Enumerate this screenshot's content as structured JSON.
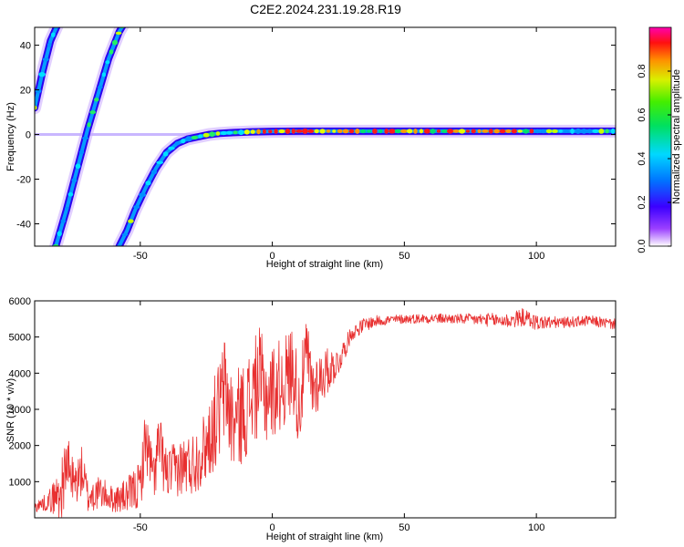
{
  "title": "C2E2.2024.231.19.28.R19",
  "chart_data": [
    {
      "type": "heatmap",
      "xlabel": "Height of straight line (km)",
      "ylabel": "Frequency (Hz)",
      "xlim": [
        -90,
        130
      ],
      "ylim": [
        -50,
        48
      ],
      "xticks": [
        -50,
        0,
        50,
        100
      ],
      "yticks": [
        -40,
        -20,
        0,
        20,
        40
      ],
      "colorbar": {
        "label": "Normalized spectral amplitude",
        "range": [
          0,
          1
        ],
        "ticks": [
          0.0,
          0.2,
          0.4,
          0.6,
          0.8
        ],
        "tick_labels": [
          "0.0",
          "0.2",
          "0.4",
          "0.6",
          "0.8"
        ]
      },
      "traces": [
        {
          "x": [
            -90,
            -87,
            -84,
            -81
          ],
          "y": [
            12,
            28,
            42,
            50
          ]
        },
        {
          "x": [
            -82,
            -78,
            -74,
            -70,
            -66,
            -62,
            -58,
            -55
          ],
          "y": [
            -50,
            -34,
            -16,
            2,
            18,
            34,
            46,
            52
          ]
        },
        {
          "x": [
            -58,
            -55,
            -52,
            -48,
            -44,
            -40,
            -36,
            -32,
            -28,
            -24,
            -20,
            -16,
            -12,
            -8,
            -4,
            0,
            10,
            20,
            40,
            60,
            80,
            100,
            130
          ],
          "y": [
            -50,
            -43,
            -34,
            -24,
            -15,
            -8,
            -4,
            -2,
            -1,
            0,
            0.5,
            0.8,
            1,
            1.2,
            1.3,
            1.4,
            1.5,
            1.5,
            1.5,
            1.5,
            1.5,
            1.5,
            1.5
          ]
        }
      ]
    },
    {
      "type": "line",
      "xlabel": "Height of straight line (km)",
      "ylabel": "SNR (10 * v/v)",
      "xlim": [
        -90,
        130
      ],
      "ylim": [
        0,
        6000
      ],
      "xticks": [
        -50,
        0,
        50,
        100
      ],
      "yticks": [
        1000,
        2000,
        3000,
        4000,
        5000,
        6000
      ],
      "color": "#e83030",
      "x": [
        -90,
        -85,
        -80,
        -78,
        -75,
        -72,
        -70,
        -65,
        -60,
        -55,
        -50,
        -48,
        -45,
        -43,
        -40,
        -35,
        -30,
        -25,
        -20,
        -18,
        -15,
        -10,
        -5,
        -3,
        0,
        5,
        8,
        10,
        13,
        15,
        20,
        25,
        30,
        35,
        40,
        50,
        60,
        70,
        80,
        90,
        95,
        100,
        110,
        120,
        130
      ],
      "y": [
        300,
        450,
        700,
        1500,
        900,
        1300,
        600,
        700,
        500,
        600,
        900,
        2200,
        1100,
        2000,
        1200,
        1400,
        1500,
        2000,
        3000,
        3600,
        2600,
        3000,
        3800,
        3400,
        3500,
        3800,
        4200,
        3000,
        4600,
        3600,
        4000,
        4300,
        5100,
        5350,
        5450,
        5500,
        5520,
        5500,
        5480,
        5450,
        5550,
        5400,
        5400,
        5450,
        5350
      ],
      "spread": [
        150,
        250,
        800,
        900,
        650,
        700,
        550,
        450,
        350,
        500,
        700,
        900,
        700,
        1000,
        700,
        800,
        900,
        1000,
        1500,
        1500,
        1400,
        1400,
        1500,
        1500,
        1300,
        1300,
        1300,
        1200,
        1000,
        1000,
        700,
        400,
        200,
        200,
        150,
        130,
        140,
        140,
        180,
        220,
        250,
        220,
        150,
        150,
        150
      ]
    }
  ]
}
